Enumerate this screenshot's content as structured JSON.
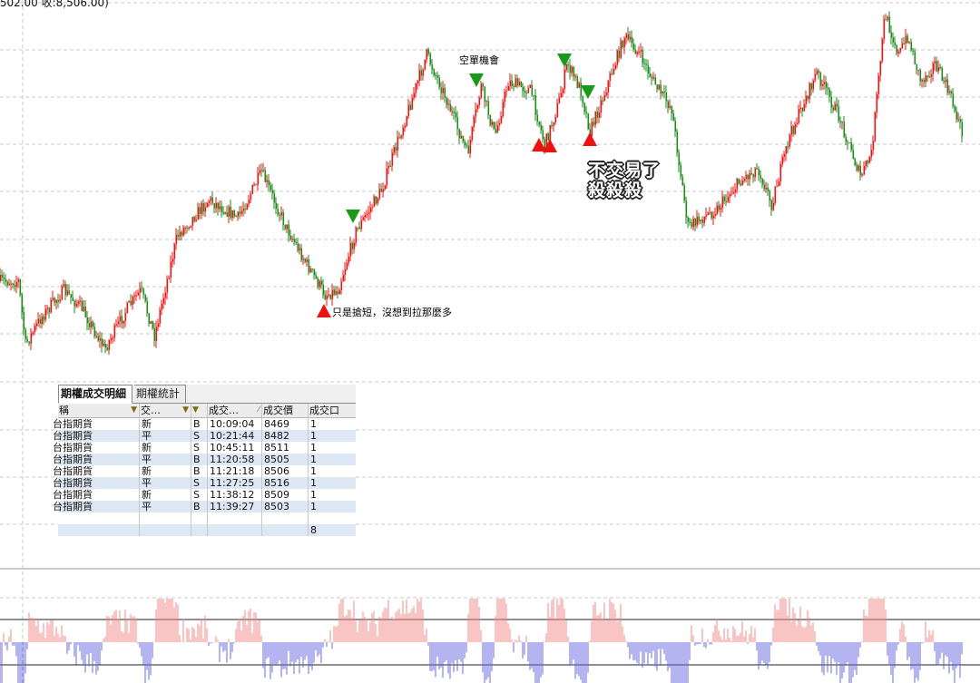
{
  "header": {
    "price_info": ",502.00 收:8,506.00)"
  },
  "annotations": {
    "short_opportunity": "空單機會",
    "scalp_note": "只是搶短，沒想到拉那麼多",
    "no_trade_line1": "不交易了",
    "no_trade_line2": "殺殺殺"
  },
  "trade_panel": {
    "tabs": [
      {
        "label": "期權成交明細",
        "active": true
      },
      {
        "label": "期權統計",
        "active": false
      }
    ],
    "columns": [
      "稱",
      "交…",
      "",
      "成交…",
      "成交價",
      "成交口"
    ],
    "rows": [
      [
        "台指期貨",
        "新",
        "B",
        "10:09:04",
        "8469",
        "1"
      ],
      [
        "台指期貨",
        "平",
        "S",
        "10:21:44",
        "8482",
        "1"
      ],
      [
        "台指期貨",
        "新",
        "S",
        "10:45:11",
        "8511",
        "1"
      ],
      [
        "台指期貨",
        "平",
        "B",
        "11:20:58",
        "8505",
        "1"
      ],
      [
        "台指期貨",
        "新",
        "B",
        "11:21:18",
        "8506",
        "1"
      ],
      [
        "台指期貨",
        "平",
        "S",
        "11:27:25",
        "8516",
        "1"
      ],
      [
        "台指期貨",
        "新",
        "S",
        "11:38:12",
        "8509",
        "1"
      ],
      [
        "台指期貨",
        "平",
        "B",
        "11:39:27",
        "8503",
        "1"
      ]
    ],
    "total_qty": "8"
  },
  "colors": {
    "up": "#ee1111",
    "down": "#1a8a1a",
    "buy_marker": "#ee1111",
    "sell_marker": "#1a9a1a",
    "osc_pos": "#f08888",
    "osc_neg": "#6a6ae0",
    "grid": "#c8c8c8"
  }
}
